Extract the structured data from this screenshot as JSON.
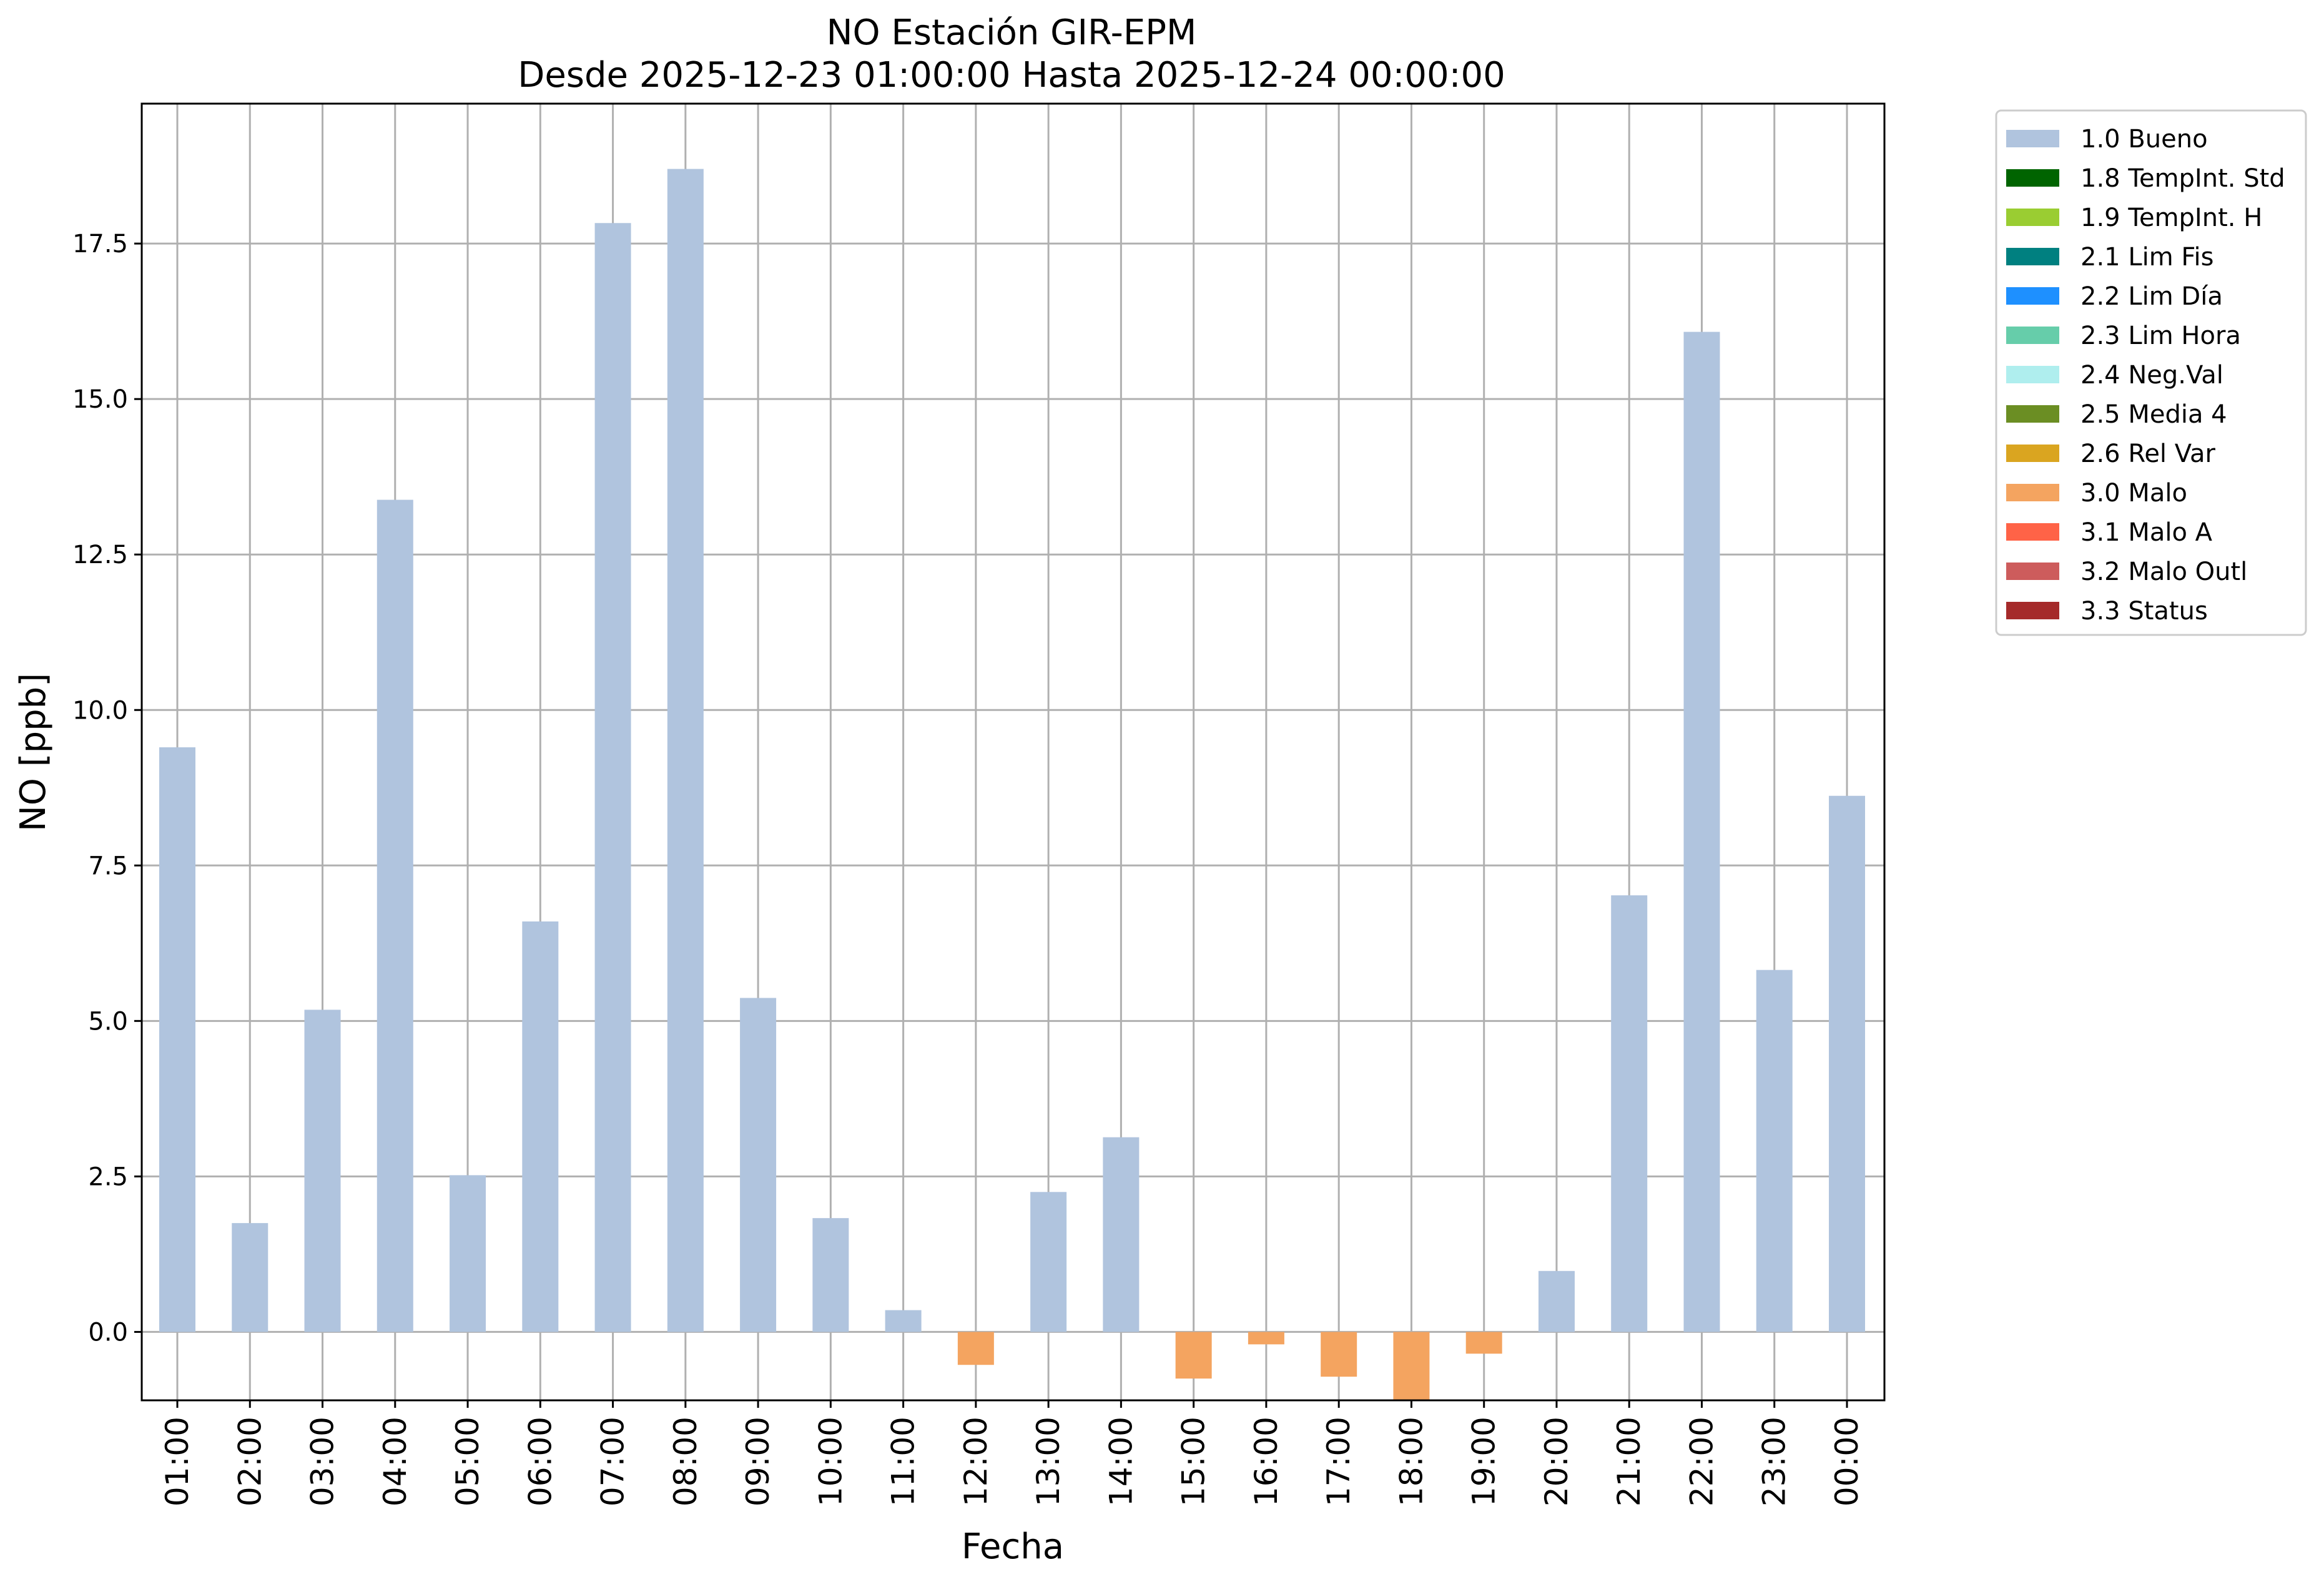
{
  "chart_data": {
    "type": "bar",
    "title": "NO Estación GIR-EPM",
    "subtitle": "Desde 2025-12-23 01:00:00 Hasta 2025-12-24 00:00:00",
    "xlabel": "Fecha",
    "ylabel": "NO [ppb]",
    "ylim": [
      -1.1,
      19.75
    ],
    "yticks": [
      "0.0",
      "2.5",
      "5.0",
      "7.5",
      "10.0",
      "12.5",
      "15.0",
      "17.5"
    ],
    "ytick_values": [
      0,
      2.5,
      5,
      7.5,
      10,
      12.5,
      15,
      17.5
    ],
    "grid": true,
    "legend_position": "outside upper right",
    "categories": [
      "01:00",
      "02:00",
      "03:00",
      "04:00",
      "05:00",
      "06:00",
      "07:00",
      "08:00",
      "09:00",
      "10:00",
      "11:00",
      "12:00",
      "13:00",
      "14:00",
      "15:00",
      "16:00",
      "17:00",
      "18:00",
      "19:00",
      "20:00",
      "21:00",
      "22:00",
      "23:00",
      "00:00"
    ],
    "values": [
      9.4,
      1.75,
      5.18,
      13.38,
      2.52,
      6.6,
      17.83,
      18.7,
      5.37,
      1.83,
      0.35,
      -0.53,
      2.25,
      3.13,
      -0.75,
      -0.2,
      -0.72,
      -1.15,
      -0.35,
      0.98,
      7.02,
      16.08,
      5.82,
      8.62
    ],
    "flags": [
      "1.0 Bueno",
      "1.0 Bueno",
      "1.0 Bueno",
      "1.0 Bueno",
      "1.0 Bueno",
      "1.0 Bueno",
      "1.0 Bueno",
      "1.0 Bueno",
      "1.0 Bueno",
      "1.0 Bueno",
      "1.0 Bueno",
      "3.0 Malo",
      "1.0 Bueno",
      "1.0 Bueno",
      "3.0 Malo",
      "3.0 Malo",
      "3.0 Malo",
      "3.0 Malo",
      "3.0 Malo",
      "1.0 Bueno",
      "1.0 Bueno",
      "1.0 Bueno",
      "1.0 Bueno",
      "1.0 Bueno"
    ],
    "legend": [
      {
        "label": "1.0 Bueno",
        "color": "#b0c4de"
      },
      {
        "label": "1.8 TempInt. Std",
        "color": "#006400"
      },
      {
        "label": "1.9 TempInt. H",
        "color": "#9acd32"
      },
      {
        "label": "2.1 Lim Fis",
        "color": "#008080"
      },
      {
        "label": "2.2 Lim Día",
        "color": "#1e90ff"
      },
      {
        "label": "2.3 Lim Hora",
        "color": "#66cdaa"
      },
      {
        "label": "2.4 Neg.Val",
        "color": "#afeeee"
      },
      {
        "label": "2.5 Media 4",
        "color": "#6b8e23"
      },
      {
        "label": "2.6 Rel Var",
        "color": "#daa520"
      },
      {
        "label": "3.0 Malo",
        "color": "#f4a460"
      },
      {
        "label": "3.1 Malo A",
        "color": "#ff6347"
      },
      {
        "label": "3.2 Malo Outl",
        "color": "#cd5c5c"
      },
      {
        "label": "3.3 Status",
        "color": "#a52a2a"
      }
    ]
  }
}
